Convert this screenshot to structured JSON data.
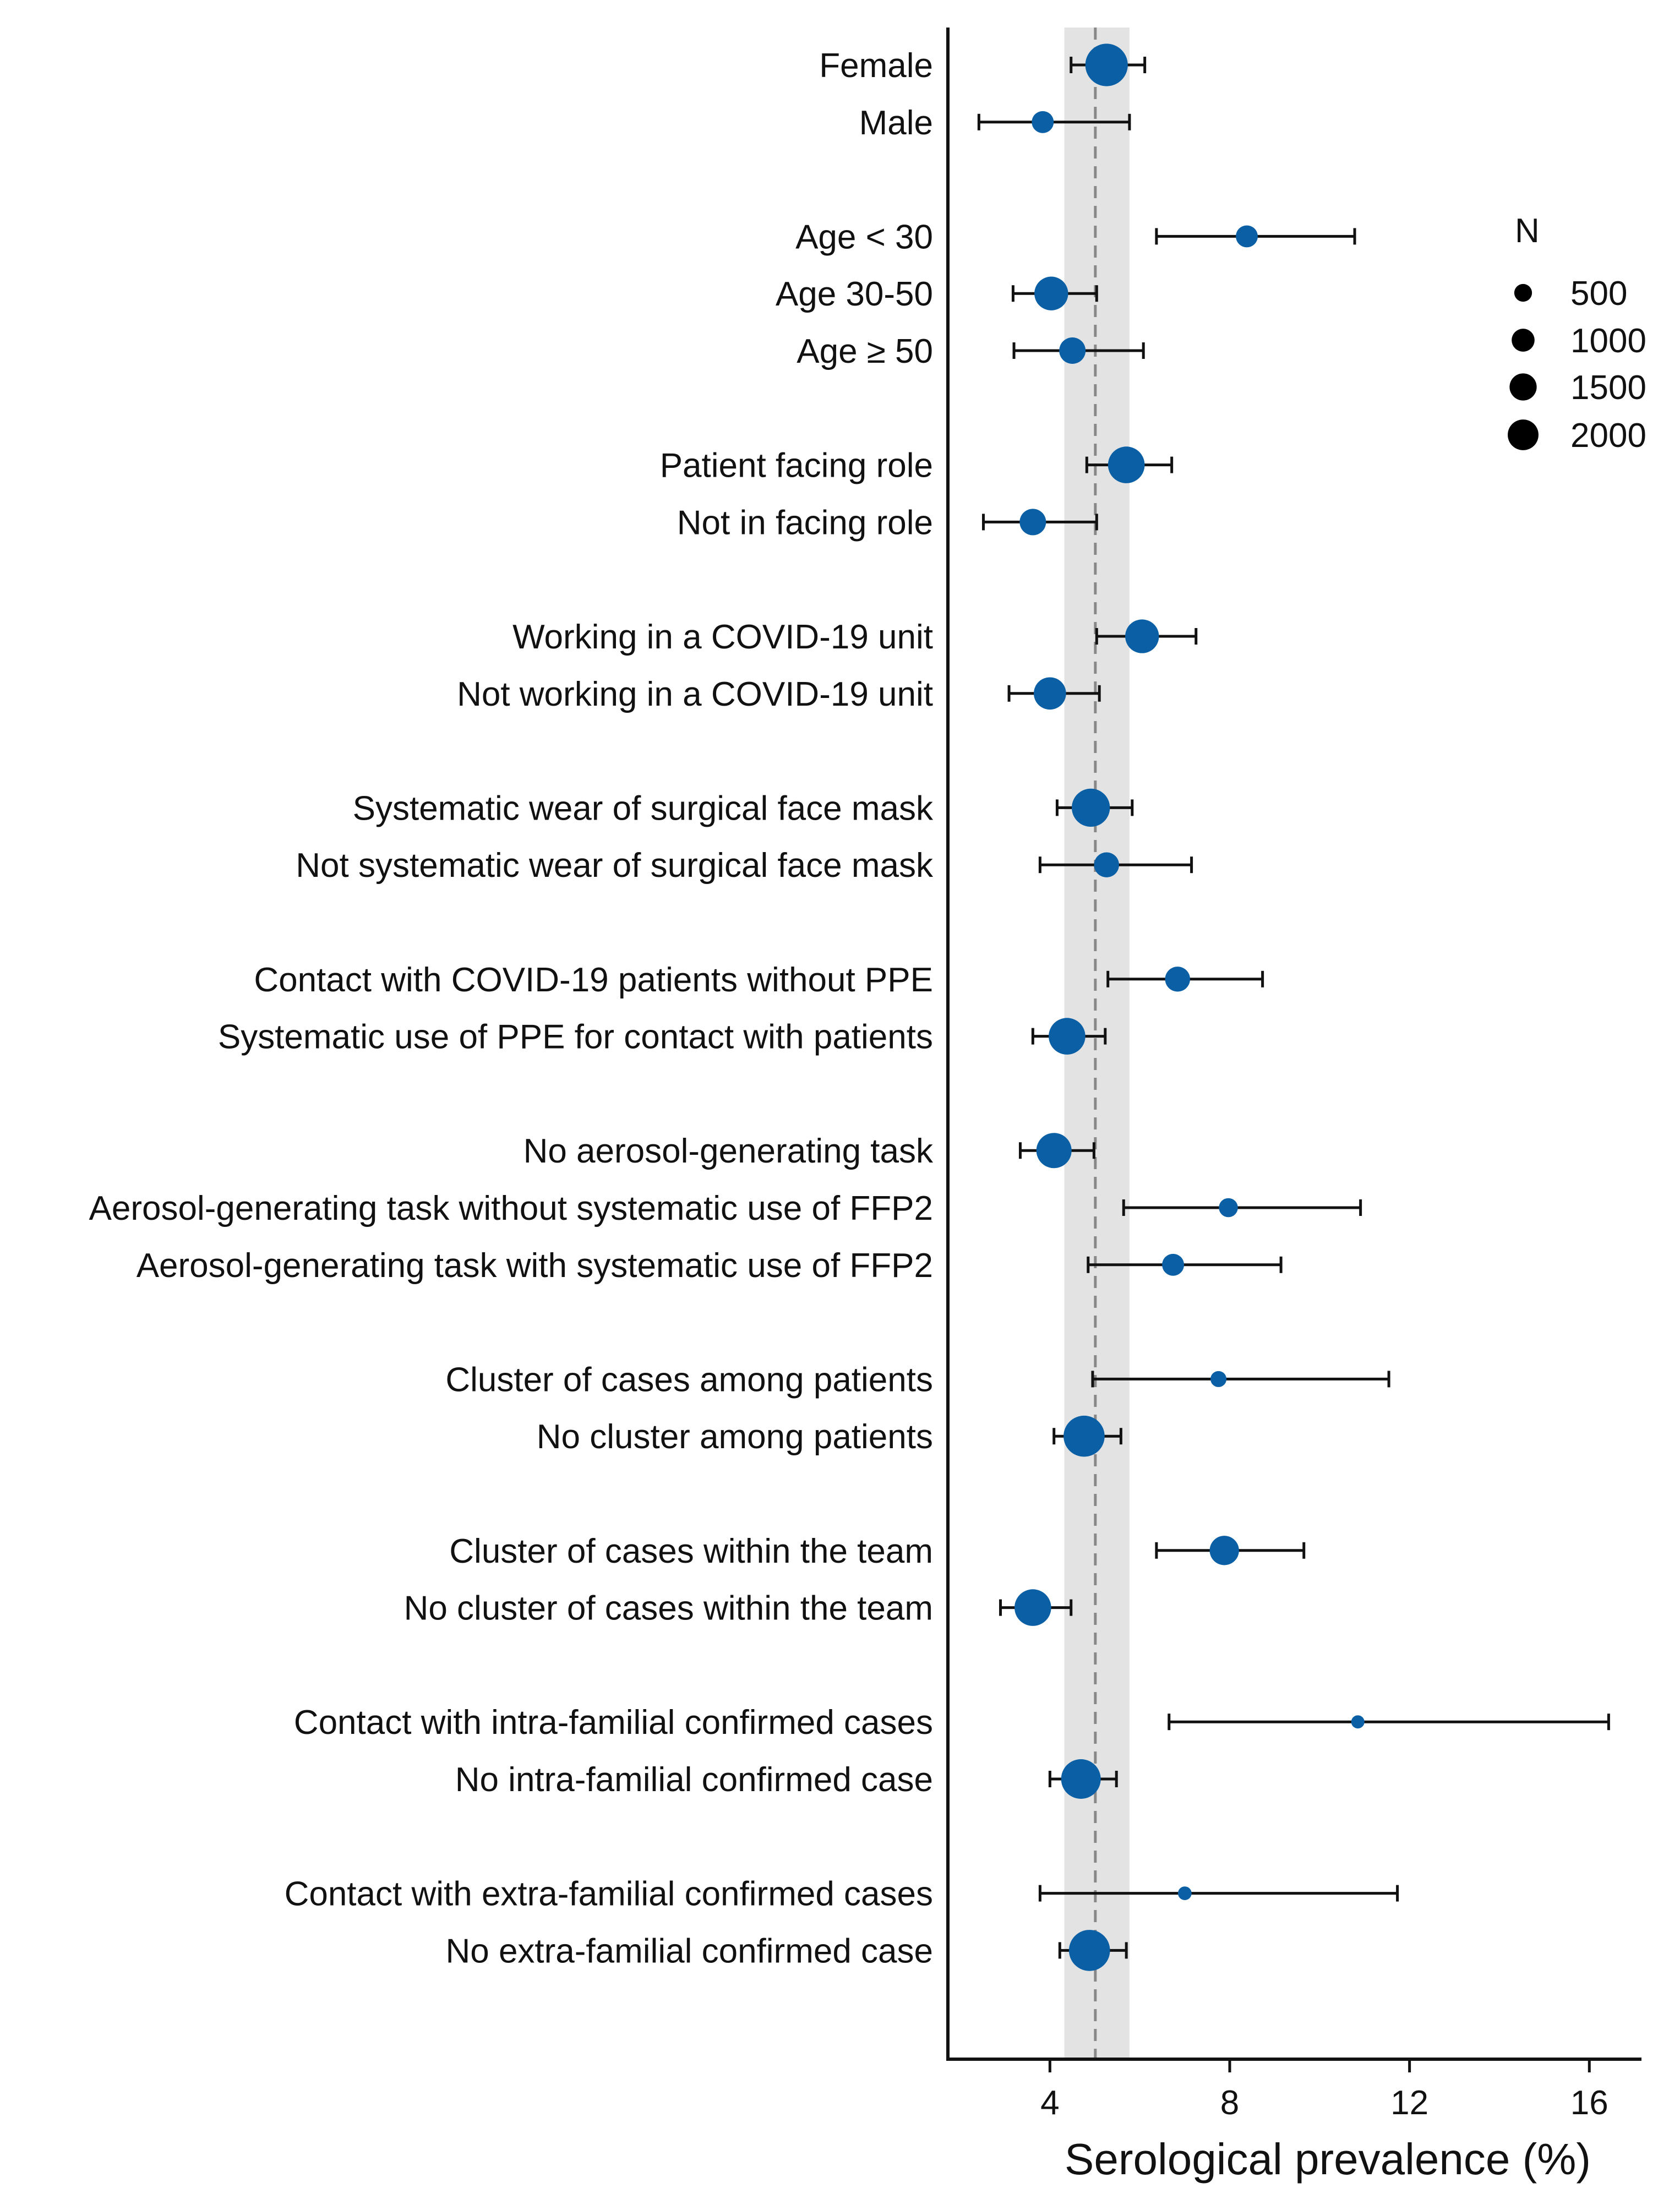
{
  "chart_data": {
    "type": "scatter",
    "subtype": "forest-plot",
    "xlabel": "Serological prevalence (%)",
    "ylabel": "",
    "xlim": [
      1.73,
      17.16
    ],
    "xticks": [
      4,
      8,
      12,
      16
    ],
    "xtick_labels": [
      "4",
      "8",
      "12",
      "16"
    ],
    "grid": false,
    "reference_line": 5.01,
    "reference_band": [
      4.32,
      5.77
    ],
    "point_color": "#0b5fa5",
    "legend": {
      "title": "N",
      "placement": "right",
      "entries": [
        {
          "label": "500",
          "n": 500
        },
        {
          "label": "1000",
          "n": 1000
        },
        {
          "label": "1500",
          "n": 1500
        },
        {
          "label": "2000",
          "n": 2000
        }
      ]
    },
    "groups": [
      {
        "rows": [
          {
            "label": "Female",
            "estimate": 5.26,
            "lower": 4.47,
            "upper": 6.11,
            "n": 2850
          },
          {
            "label": "Male",
            "estimate": 3.84,
            "lower": 2.42,
            "upper": 5.77,
            "n": 580
          }
        ]
      },
      {
        "rows": [
          {
            "label": "Age < 30",
            "estimate": 8.38,
            "lower": 6.37,
            "upper": 10.78,
            "n": 580
          },
          {
            "label": "Age 30-50",
            "estimate": 4.03,
            "lower": 3.18,
            "upper": 5.04,
            "n": 1710
          },
          {
            "label": "Age ≥ 50",
            "estimate": 4.5,
            "lower": 3.2,
            "upper": 6.08,
            "n": 950
          }
        ]
      },
      {
        "rows": [
          {
            "label": "Patient facing role",
            "estimate": 5.7,
            "lower": 4.82,
            "upper": 6.71,
            "n": 2060
          },
          {
            "label": "Not in facing role",
            "estimate": 3.62,
            "lower": 2.52,
            "upper": 5.04,
            "n": 950
          }
        ]
      },
      {
        "rows": [
          {
            "label": "Working in a COVID-19 unit",
            "estimate": 6.05,
            "lower": 5.04,
            "upper": 7.25,
            "n": 1710
          },
          {
            "label": "Not working in a COVID-19 unit",
            "estimate": 4.0,
            "lower": 3.09,
            "upper": 5.1,
            "n": 1545
          }
        ]
      },
      {
        "rows": [
          {
            "label": "Systematic wear of surgical face mask",
            "estimate": 4.91,
            "lower": 4.16,
            "upper": 5.83,
            "n": 2250
          },
          {
            "label": "Not systematic wear of surgical face mask",
            "estimate": 5.26,
            "lower": 3.78,
            "upper": 7.15,
            "n": 825
          }
        ]
      },
      {
        "rows": [
          {
            "label": "Contact with COVID-19 patients without PPE",
            "estimate": 6.84,
            "lower": 5.29,
            "upper": 8.73,
            "n": 825
          },
          {
            "label": "Systematic use of PPE for contact with patients",
            "estimate": 4.38,
            "lower": 3.62,
            "upper": 5.23,
            "n": 2060
          }
        ]
      },
      {
        "rows": [
          {
            "label": "No aerosol-generating task",
            "estimate": 4.09,
            "lower": 3.34,
            "upper": 4.98,
            "n": 1885
          },
          {
            "label": "Aerosol-generating task without systematic use of FFP2",
            "estimate": 7.97,
            "lower": 5.64,
            "upper": 10.91,
            "n": 370
          },
          {
            "label": "Aerosol-generating task with systematic use of FFP2",
            "estimate": 6.74,
            "lower": 4.85,
            "upper": 9.14,
            "n": 580
          }
        ]
      },
      {
        "rows": [
          {
            "label": "Cluster of cases among patients",
            "estimate": 7.75,
            "lower": 4.95,
            "upper": 11.54,
            "n": 190
          },
          {
            "label": "No cluster among patients",
            "estimate": 4.76,
            "lower": 4.09,
            "upper": 5.58,
            "n": 2650
          }
        ]
      },
      {
        "rows": [
          {
            "label": "Cluster of cases within the team",
            "estimate": 7.88,
            "lower": 6.37,
            "upper": 9.65,
            "n": 1230
          },
          {
            "label": "No cluster of cases within the team",
            "estimate": 3.62,
            "lower": 2.9,
            "upper": 4.47,
            "n": 2060
          }
        ]
      },
      {
        "rows": [
          {
            "label": "Contact with intra-familial confirmed cases",
            "estimate": 10.85,
            "lower": 6.65,
            "upper": 16.43,
            "n": 50
          },
          {
            "label": "No intra-familial confirmed case",
            "estimate": 4.69,
            "lower": 4.0,
            "upper": 5.48,
            "n": 2450
          }
        ]
      },
      {
        "rows": [
          {
            "label": "Contact with extra-familial confirmed cases",
            "estimate": 7.0,
            "lower": 3.78,
            "upper": 11.73,
            "n": 70
          },
          {
            "label": "No extra-familial confirmed case",
            "estimate": 4.88,
            "lower": 4.22,
            "upper": 5.7,
            "n": 2650
          }
        ]
      }
    ]
  }
}
